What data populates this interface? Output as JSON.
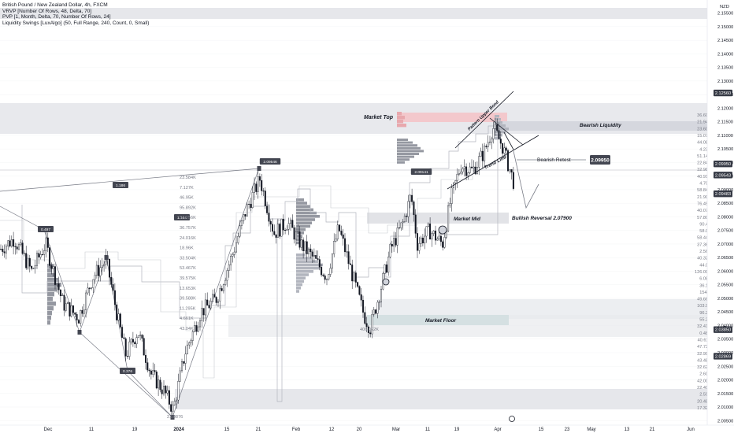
{
  "legend": {
    "symbol": "British Pound / New Zealand Dollar, 4h, FXCM",
    "line2": "VRVP [Number Of Rows, 48, Delta, 70]",
    "line3": "PVP [1, Month, Delta, 70, Number Of Rows, 24]",
    "line4": "Liquidity Swings [LuxAlgo] (50, Full Range, 240, Count, 0, Small)"
  },
  "currency": "NZD",
  "chart_data": {
    "type": "candlestick",
    "symbol": "GBPNZD",
    "timeframe": "4h",
    "ylim": [
      2.0045,
      2.1575
    ],
    "y_ticks": [
      2.155,
      2.15,
      2.145,
      2.14,
      2.135,
      2.13,
      2.125,
      2.12,
      2.115,
      2.11,
      2.105,
      2.1,
      2.095,
      2.09,
      2.085,
      2.08,
      2.075,
      2.07,
      2.065,
      2.06,
      2.055,
      2.05,
      2.045,
      2.04,
      2.035,
      2.03,
      2.025,
      2.02,
      2.015,
      2.01,
      2.005
    ],
    "x_tick_labels": [
      {
        "label": "Dec",
        "x": 61
      },
      {
        "label": "11",
        "x": 116
      },
      {
        "label": "19",
        "x": 171
      },
      {
        "label": "2024",
        "x": 227
      },
      {
        "label": "15",
        "x": 288
      },
      {
        "label": "21",
        "x": 328
      },
      {
        "label": "Feb",
        "x": 376
      },
      {
        "label": "12",
        "x": 421
      },
      {
        "label": "20",
        "x": 456
      },
      {
        "label": "Mar",
        "x": 503
      },
      {
        "label": "11",
        "x": 543
      },
      {
        "label": "19",
        "x": 580
      },
      {
        "label": "Apr",
        "x": 632
      },
      {
        "label": "15",
        "x": 687
      },
      {
        "label": "23",
        "x": 720
      },
      {
        "label": "May",
        "x": 751
      },
      {
        "label": "13",
        "x": 796
      },
      {
        "label": "21",
        "x": 828
      },
      {
        "label": "Jun",
        "x": 877
      }
    ],
    "price_path": [
      [
        0,
        2.068
      ],
      [
        18,
        2.072
      ],
      [
        40,
        2.06
      ],
      [
        58,
        2.07
      ],
      [
        80,
        2.048
      ],
      [
        100,
        2.043
      ],
      [
        118,
        2.058
      ],
      [
        135,
        2.064
      ],
      [
        150,
        2.042
      ],
      [
        160,
        2.029
      ],
      [
        175,
        2.038
      ],
      [
        192,
        2.022
      ],
      [
        208,
        2.016
      ],
      [
        220,
        2.009
      ],
      [
        235,
        2.03
      ],
      [
        255,
        2.045
      ],
      [
        275,
        2.05
      ],
      [
        295,
        2.066
      ],
      [
        312,
        2.082
      ],
      [
        330,
        2.094
      ],
      [
        348,
        2.074
      ],
      [
        365,
        2.078
      ],
      [
        382,
        2.07
      ],
      [
        400,
        2.064
      ],
      [
        415,
        2.058
      ],
      [
        430,
        2.076
      ],
      [
        448,
        2.058
      ],
      [
        462,
        2.044
      ],
      [
        470,
        2.039
      ],
      [
        482,
        2.052
      ],
      [
        496,
        2.068
      ],
      [
        512,
        2.078
      ],
      [
        522,
        2.088
      ],
      [
        530,
        2.07
      ],
      [
        545,
        2.075
      ],
      [
        562,
        2.07
      ],
      [
        572,
        2.086
      ],
      [
        585,
        2.099
      ],
      [
        600,
        2.097
      ],
      [
        615,
        2.104
      ],
      [
        626,
        2.113
      ],
      [
        638,
        2.106
      ],
      [
        652,
        2.093
      ]
    ],
    "horizontal_levels": [
      {
        "price": 2.0995,
        "label": "Bearish Retest"
      },
      {
        "price": 2.079,
        "label": "Bullish Reversal 2.07900"
      }
    ],
    "price_axis_labels": {
      "current_price": "2.09950",
      "current_price_2": "2.09543",
      "current_price_3": "2.09483",
      "level_top": "2.12560",
      "level_bottom_1": "2.03850",
      "level_bottom_2": "2.02869"
    },
    "zones": [
      "Market Top",
      "Bearish Liquidity",
      "Market Mid",
      "Market Floor"
    ],
    "annotations": {
      "market_top": "Market Top",
      "bearish_liquidity": "Bearish Liquidity",
      "pattern_upper_bond": "Pattern Upper Bond",
      "trend_line": "Trend Line",
      "bearish_retest": "Bearish Retest",
      "bearish_retest_price": "2.09950",
      "market_mid": "Market Mid",
      "bullish_reversal": "Bullish Reversal 2.07900",
      "market_floor": "Market Floor"
    },
    "zigzag_labels": [
      "0.497",
      "1.186",
      "1.154",
      "0.376",
      "2.09546",
      "2.09141"
    ],
    "volume_labels_left": [
      "23.584K",
      "7.127K",
      "46.95K",
      "95.892K",
      "54.056K",
      "36.757K",
      "24.016K",
      "18.96K",
      "33.504K",
      "53.467K",
      "39.575K",
      "13.653K",
      "39.588K",
      "11.295K",
      "4.661K",
      "43.04K"
    ],
    "volume_labels_right": [
      "36.608K",
      "21.948K",
      "23.604K",
      "15.071K",
      "44.087K",
      "4.231K",
      "51.147K",
      "22.849K",
      "32.983K",
      "40.919K",
      "4.708K",
      "58.847K",
      "21.903K",
      "76.494K",
      "40.071K",
      "57.802K",
      "90.47K",
      "58.08K",
      "58.441K",
      "37.363K",
      "2.565K",
      "40.328K",
      "44.07K",
      "126.095K",
      "6.083K",
      "36.15K",
      "154.2K",
      "49.667K",
      "103.90K",
      "96.25K",
      "55.27K",
      "32.414K",
      "0.486K",
      "40.611K",
      "47.731K",
      "32.995K",
      "43.484K",
      "32.629K",
      "2.609K",
      "42.009K",
      "22.408K",
      "2.595K",
      "20.482K",
      "17.322K"
    ],
    "misc_labels": {
      "bottom_low": "2.00876",
      "mid_low": "406.022K",
      "axis_small": "906",
      "ycaption_grey": "2.09000"
    }
  },
  "colors": {
    "bg": "#ffffff",
    "candle": "#131722",
    "zone_grey": "#d1d4dc",
    "market_top_zone": "#f7b6bb",
    "market_floor_zone": "#a9c9c9",
    "price_label_bg": "#363a45",
    "volume_bar": "#b2b5be"
  }
}
